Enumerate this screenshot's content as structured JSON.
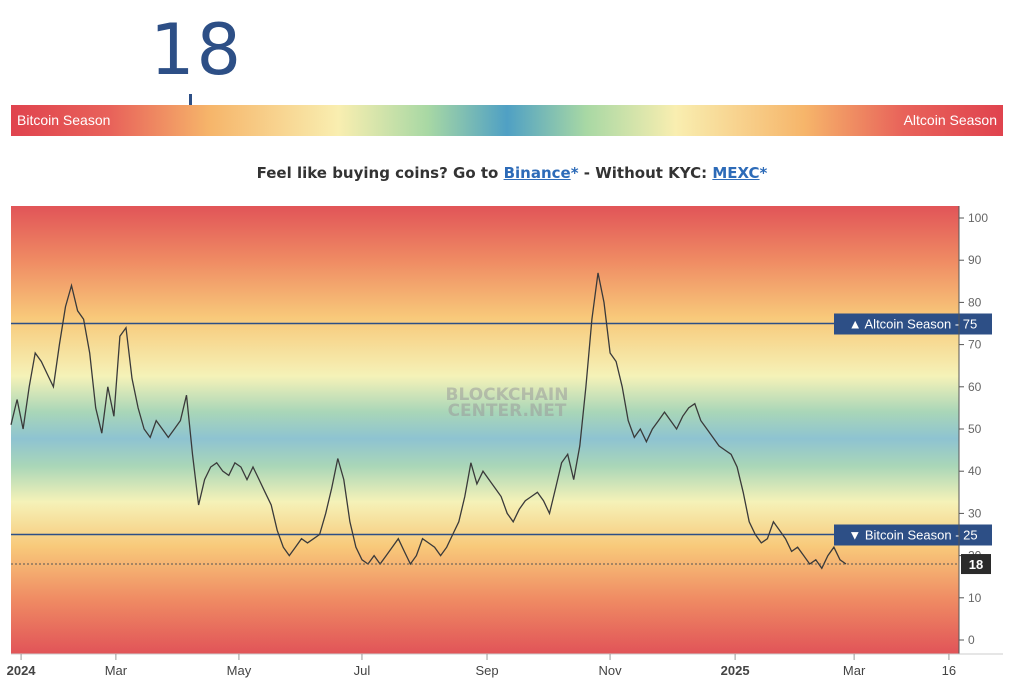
{
  "header": {
    "current_value": "18",
    "left_label": "Bitcoin Season",
    "right_label": "Altcoin Season"
  },
  "promo": {
    "text1": "Feel like buying coins? Go to ",
    "link1": "Binance",
    "ast1": "*",
    "text2": " - Without KYC: ",
    "link2": "MEXC",
    "ast2": "*"
  },
  "watermark": [
    "BLOCKCHAIN",
    "CENTER.NET"
  ],
  "chart_data": {
    "type": "line",
    "ylim": [
      0,
      100
    ],
    "yticks": [
      0,
      10,
      20,
      30,
      40,
      50,
      60,
      70,
      80,
      90,
      100
    ],
    "xticks": [
      {
        "label": "2024",
        "t": 5,
        "bold": true
      },
      {
        "label": "Mar",
        "t": 52
      },
      {
        "label": "May",
        "t": 113
      },
      {
        "label": "Jul",
        "t": 174
      },
      {
        "label": "Sep",
        "t": 236
      },
      {
        "label": "Nov",
        "t": 297
      },
      {
        "label": "2025",
        "t": 359,
        "bold": true
      },
      {
        "label": "Mar",
        "t": 418
      },
      {
        "label": "16",
        "t": 465
      }
    ],
    "thresholds": [
      {
        "label": "▲ Altcoin Season - 75",
        "value": 75
      },
      {
        "label": "▼ Bitcoin Season - 25",
        "value": 25
      }
    ],
    "current": {
      "label": "18",
      "value": 18
    },
    "series": [
      {
        "values": [
          [
            0,
            51
          ],
          [
            3,
            57
          ],
          [
            6,
            50
          ],
          [
            9,
            60
          ],
          [
            12,
            68
          ],
          [
            15,
            66
          ],
          [
            18,
            63
          ],
          [
            21,
            60
          ],
          [
            24,
            70
          ],
          [
            27,
            79
          ],
          [
            30,
            84
          ],
          [
            33,
            78
          ],
          [
            36,
            76
          ],
          [
            39,
            68
          ],
          [
            42,
            55
          ],
          [
            45,
            49
          ],
          [
            48,
            60
          ],
          [
            51,
            53
          ],
          [
            54,
            72
          ],
          [
            57,
            74
          ],
          [
            60,
            62
          ],
          [
            63,
            55
          ],
          [
            66,
            50
          ],
          [
            69,
            48
          ],
          [
            72,
            52
          ],
          [
            75,
            50
          ],
          [
            78,
            48
          ],
          [
            81,
            50
          ],
          [
            84,
            52
          ],
          [
            87,
            58
          ],
          [
            90,
            44
          ],
          [
            93,
            32
          ],
          [
            96,
            38
          ],
          [
            99,
            41
          ],
          [
            102,
            42
          ],
          [
            105,
            40
          ],
          [
            108,
            39
          ],
          [
            111,
            42
          ],
          [
            114,
            41
          ],
          [
            117,
            38
          ],
          [
            120,
            41
          ],
          [
            123,
            38
          ],
          [
            126,
            35
          ],
          [
            129,
            32
          ],
          [
            132,
            26
          ],
          [
            135,
            22
          ],
          [
            138,
            20
          ],
          [
            141,
            22
          ],
          [
            144,
            24
          ],
          [
            147,
            23
          ],
          [
            150,
            24
          ],
          [
            153,
            25
          ],
          [
            156,
            30
          ],
          [
            159,
            36
          ],
          [
            162,
            43
          ],
          [
            165,
            38
          ],
          [
            168,
            28
          ],
          [
            171,
            22
          ],
          [
            174,
            19
          ],
          [
            177,
            18
          ],
          [
            180,
            20
          ],
          [
            183,
            18
          ],
          [
            186,
            20
          ],
          [
            189,
            22
          ],
          [
            192,
            24
          ],
          [
            195,
            21
          ],
          [
            198,
            18
          ],
          [
            201,
            20
          ],
          [
            204,
            24
          ],
          [
            207,
            23
          ],
          [
            210,
            22
          ],
          [
            213,
            20
          ],
          [
            216,
            22
          ],
          [
            219,
            25
          ],
          [
            222,
            28
          ],
          [
            225,
            34
          ],
          [
            228,
            42
          ],
          [
            231,
            37
          ],
          [
            234,
            40
          ],
          [
            237,
            38
          ],
          [
            240,
            36
          ],
          [
            243,
            34
          ],
          [
            246,
            30
          ],
          [
            249,
            28
          ],
          [
            252,
            31
          ],
          [
            255,
            33
          ],
          [
            258,
            34
          ],
          [
            261,
            35
          ],
          [
            264,
            33
          ],
          [
            267,
            30
          ],
          [
            270,
            36
          ],
          [
            273,
            42
          ],
          [
            276,
            44
          ],
          [
            279,
            38
          ],
          [
            282,
            46
          ],
          [
            285,
            60
          ],
          [
            288,
            76
          ],
          [
            291,
            87
          ],
          [
            294,
            80
          ],
          [
            297,
            68
          ],
          [
            300,
            66
          ],
          [
            303,
            60
          ],
          [
            306,
            52
          ],
          [
            309,
            48
          ],
          [
            312,
            50
          ],
          [
            315,
            47
          ],
          [
            318,
            50
          ],
          [
            321,
            52
          ],
          [
            324,
            54
          ],
          [
            327,
            52
          ],
          [
            330,
            50
          ],
          [
            333,
            53
          ],
          [
            336,
            55
          ],
          [
            339,
            56
          ],
          [
            342,
            52
          ],
          [
            345,
            50
          ],
          [
            348,
            48
          ],
          [
            351,
            46
          ],
          [
            354,
            45
          ],
          [
            357,
            44
          ],
          [
            360,
            41
          ],
          [
            363,
            35
          ],
          [
            366,
            28
          ],
          [
            369,
            25
          ],
          [
            372,
            23
          ],
          [
            375,
            24
          ],
          [
            378,
            28
          ],
          [
            381,
            26
          ],
          [
            384,
            24
          ],
          [
            387,
            21
          ],
          [
            390,
            22
          ],
          [
            393,
            20
          ],
          [
            396,
            18
          ],
          [
            399,
            19
          ],
          [
            402,
            17
          ],
          [
            405,
            20
          ],
          [
            408,
            22
          ],
          [
            411,
            19
          ],
          [
            414,
            18
          ]
        ]
      }
    ]
  },
  "colors": {
    "accent": "#2d4f86",
    "line": "#3a3a3a"
  }
}
